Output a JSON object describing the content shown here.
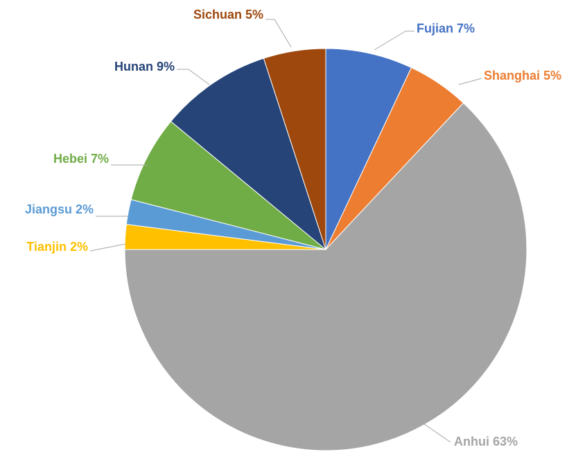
{
  "chart_data": {
    "type": "pie",
    "categories": [
      "Fujian",
      "Shanghai",
      "Anhui",
      "Tianjin",
      "Jiangsu",
      "Hebei",
      "Hunan",
      "Sichuan"
    ],
    "values": [
      7,
      5,
      63,
      2,
      2,
      7,
      9,
      5
    ],
    "value_labels": [
      "7%",
      "5%",
      "63%",
      "2%",
      "2%",
      "7%",
      "9%",
      "5%"
    ],
    "colors": [
      "#4472c4",
      "#ed7d31",
      "#a5a5a5",
      "#ffc000",
      "#5b9bd5",
      "#70ad47",
      "#264478",
      "#9e480e"
    ]
  }
}
